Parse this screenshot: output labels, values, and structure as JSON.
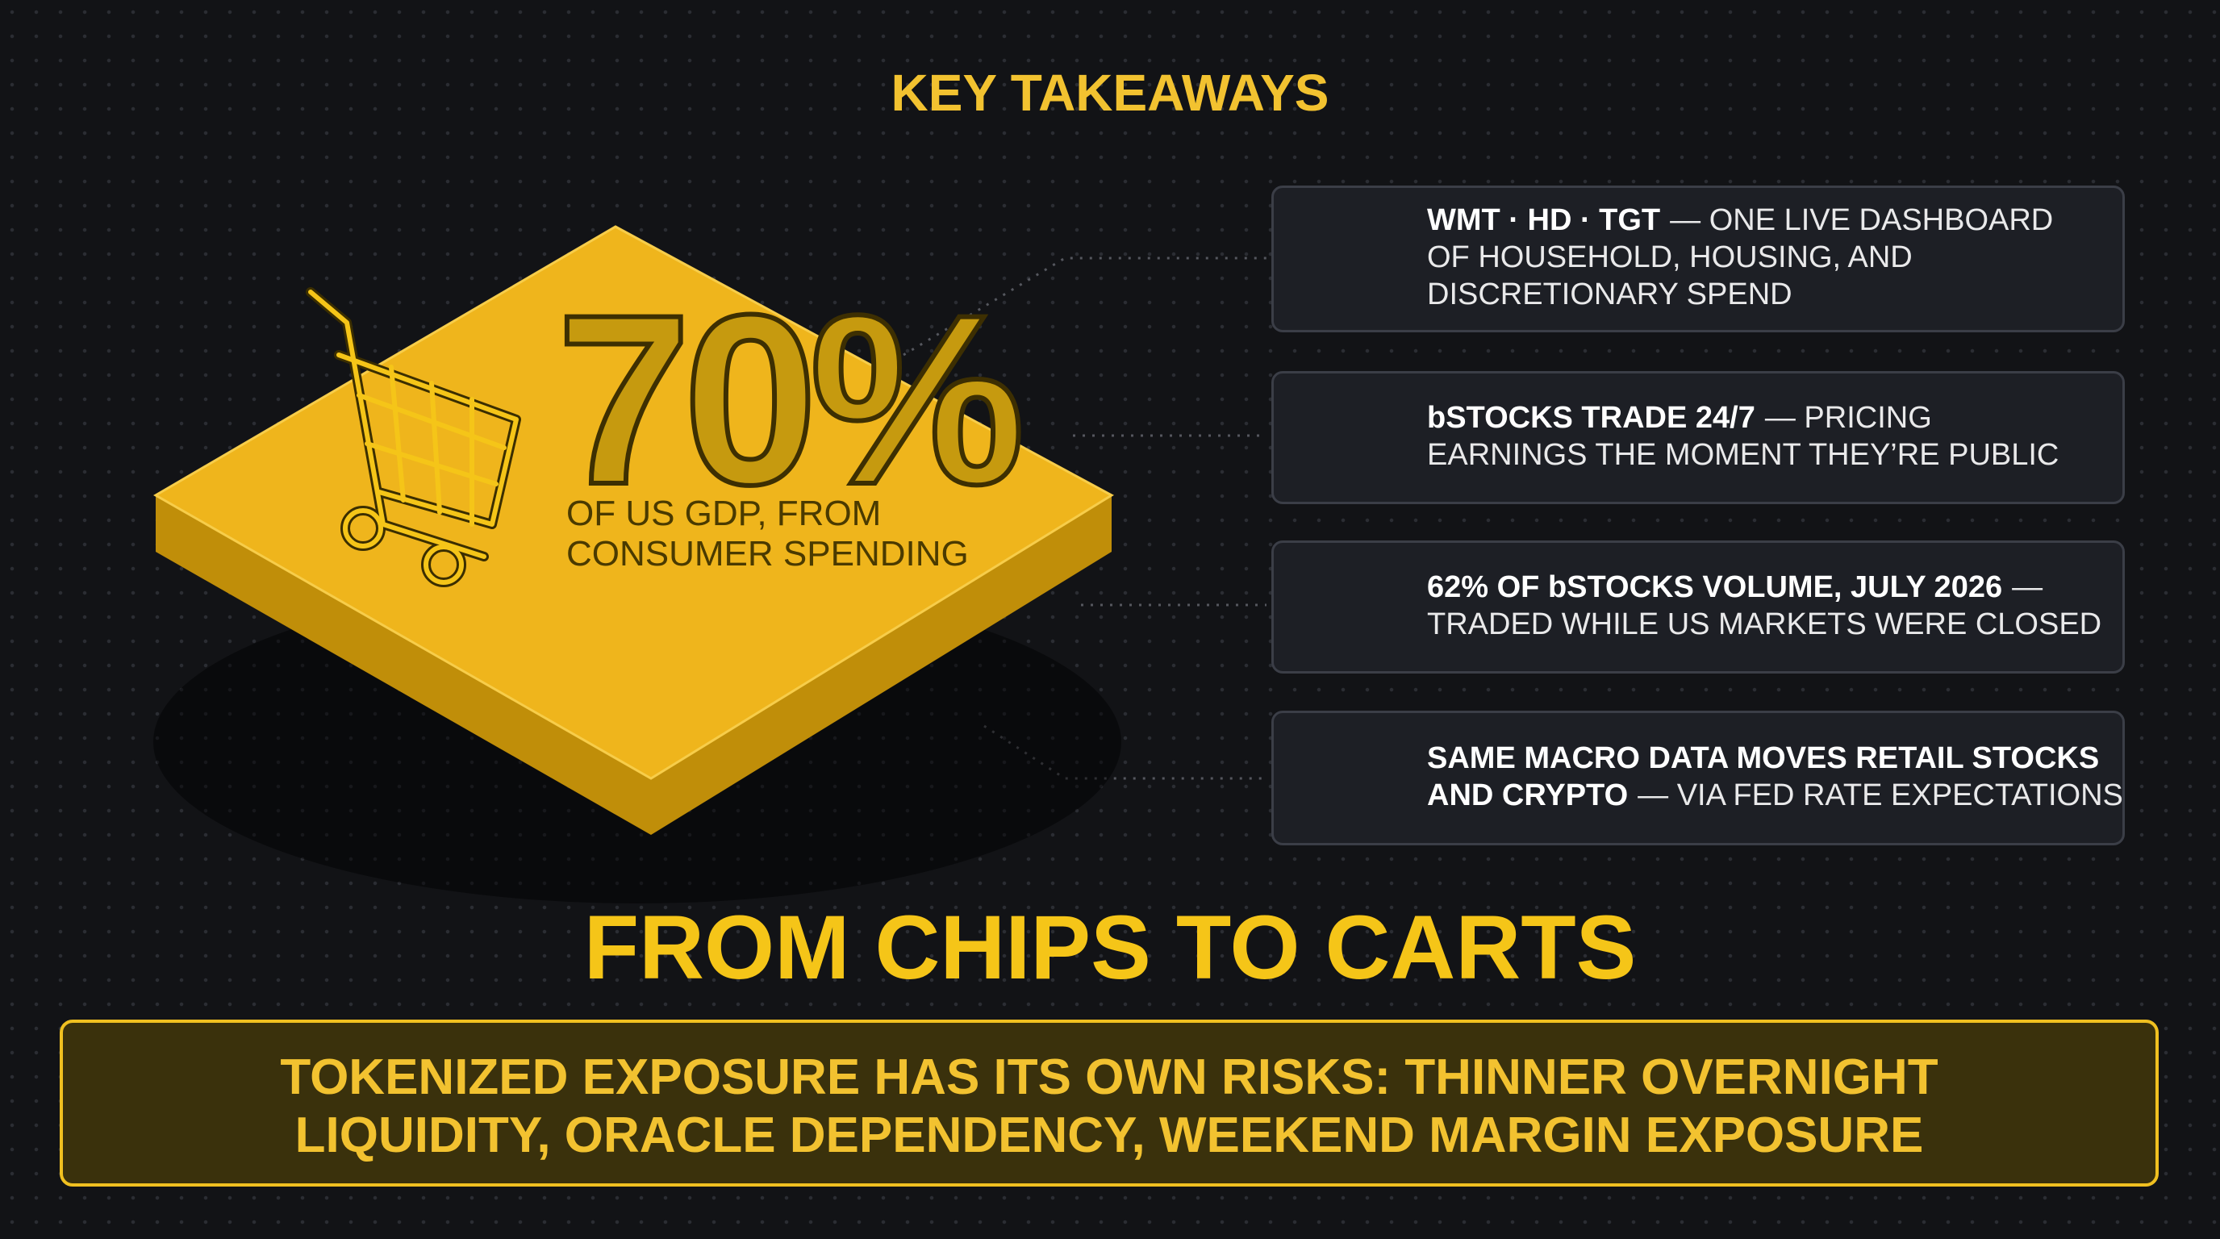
{
  "header": {
    "title": "KEY TAKEAWAYS"
  },
  "stat": {
    "value": "70%",
    "caption": [
      "OF US GDP, FROM",
      "CONSUMER SPENDING"
    ]
  },
  "cards": [
    {
      "lines": [
        {
          "bold": "WMT · HD · TGT",
          "text": "— ONE LIVE DASHBOARD"
        },
        {
          "text": "OF HOUSEHOLD, HOUSING, AND"
        },
        {
          "text": "DISCRETIONARY SPEND"
        }
      ]
    },
    {
      "lines": [
        {
          "bold": "bSTOCKS TRADE 24/7",
          "text": "— PRICING"
        },
        {
          "text": "EARNINGS THE MOMENT THEY’RE PUBLIC"
        }
      ]
    },
    {
      "lines": [
        {
          "bold": "62% OF bSTOCKS VOLUME, JULY 2026",
          "text": "—"
        },
        {
          "text": "TRADED WHILE US MARKETS WERE CLOSED"
        }
      ]
    },
    {
      "lines": [
        {
          "bold": "SAME MACRO DATA MOVES RETAIL STOCKS"
        },
        {
          "bold": "AND CRYPTO",
          "text": "— VIA FED RATE EXPECTATIONS"
        }
      ]
    }
  ],
  "headline": "FROM CHIPS TO CARTS",
  "banner": {
    "lines": [
      "TOKENIZED EXPOSURE HAS ITS OWN RISKS: THINNER OVERNIGHT",
      "LIQUIDITY, ORACLE DEPENDENCY, WEEKEND MARGIN EXPOSURE"
    ]
  }
}
